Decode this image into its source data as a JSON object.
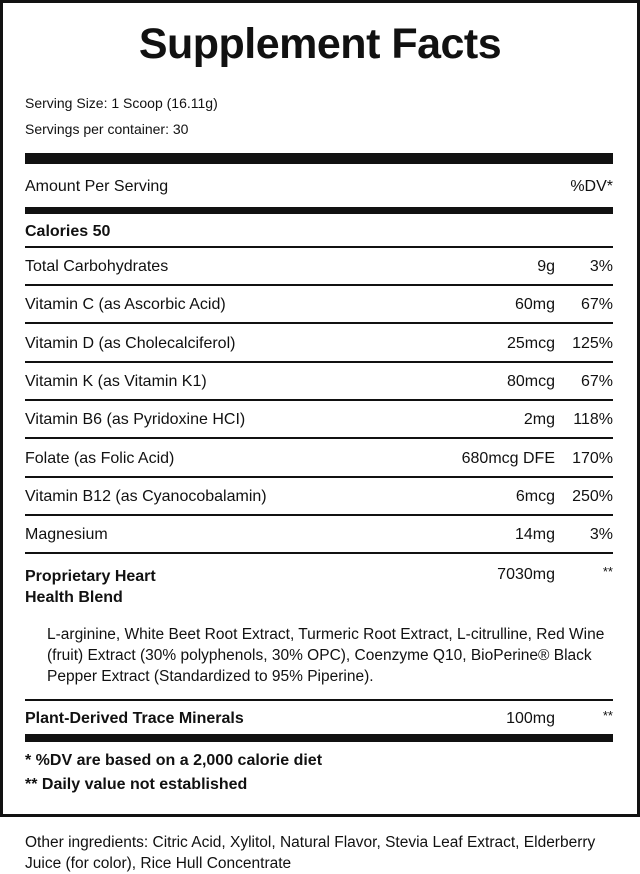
{
  "title": "Supplement Facts",
  "serving_size": "Serving Size: 1 Scoop (16.11g)",
  "servings_per_container": "Servings per container: 30",
  "header": {
    "amount_label": "Amount Per Serving",
    "dv_label": "%DV*"
  },
  "calories": "Calories 50",
  "nutrients": [
    {
      "name": "Total Carbohydrates",
      "amount": "9g",
      "dv": "3%"
    },
    {
      "name": "Vitamin C (as Ascorbic Acid)",
      "amount": "60mg",
      "dv": "67%"
    },
    {
      "name": "Vitamin D (as Cholecalciferol)",
      "amount": "25mcg",
      "dv": "125%"
    },
    {
      "name": "Vitamin K (as Vitamin K1)",
      "amount": "80mcg",
      "dv": "67%"
    },
    {
      "name": "Vitamin B6 (as Pyridoxine HCI)",
      "amount": "2mg",
      "dv": "118%"
    },
    {
      "name": "Folate (as Folic Acid)",
      "amount": "680mcg DFE",
      "dv": "170%"
    },
    {
      "name": "Vitamin B12 (as Cyanocobalamin)",
      "amount": "6mcg",
      "dv": "250%"
    },
    {
      "name": "Magnesium",
      "amount": "14mg",
      "dv": "3%"
    }
  ],
  "blend": {
    "name_line1": "Proprietary Heart",
    "name_line2": "Health Blend",
    "amount": "7030mg",
    "dv": "**",
    "ingredients": "L-arginine, White Beet Root Extract, Turmeric Root Extract, L-citrulline, Red Wine (fruit) Extract (30% polyphenols, 30% OPC), Coenzyme Q10, BioPerine® Black Pepper Extract (Standardized to 95% Piperine)."
  },
  "trace_minerals": {
    "name": "Plant-Derived Trace Minerals",
    "amount": "100mg",
    "dv": "**"
  },
  "footnotes": [
    "* %DV are based on a 2,000 calorie diet",
    "** Daily value not established"
  ],
  "other_ingredients": "Other ingredients: Citric Acid, Xylitol, Natural Flavor, Stevia Leaf Extract, Elderberry Juice (for color), Rice Hull Concentrate"
}
